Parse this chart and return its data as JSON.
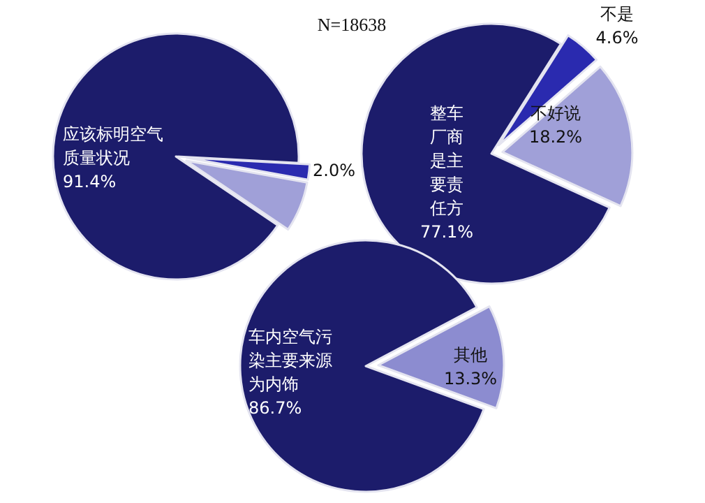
{
  "chart_data": [
    {
      "type": "pie",
      "categories": [
        "应该标明空气质量状况",
        null,
        null
      ],
      "values": [
        91.4,
        2.0,
        6.6
      ],
      "value_labels": [
        "91.4%",
        "2.0%",
        null
      ],
      "colors": [
        "#1c1c6b",
        "#2a2aaf",
        "#a0a0d8"
      ],
      "annotations": [
        "N=18638"
      ]
    },
    {
      "type": "pie",
      "categories": [
        "整车厂商是主要责任方",
        "不是",
        "不好说"
      ],
      "values": [
        77.1,
        4.6,
        18.2
      ],
      "value_labels": [
        "77.1%",
        "4.6%",
        "18.2%"
      ],
      "colors": [
        "#1c1c6b",
        "#2a2aaf",
        "#a0a0d8"
      ]
    },
    {
      "type": "pie",
      "categories": [
        "车内空气污染主要来源为内饰",
        "其他"
      ],
      "values": [
        86.7,
        13.3
      ],
      "value_labels": [
        "86.7%",
        "13.3%"
      ],
      "colors": [
        "#1c1c6b",
        "#8c8cd0"
      ]
    }
  ]
}
